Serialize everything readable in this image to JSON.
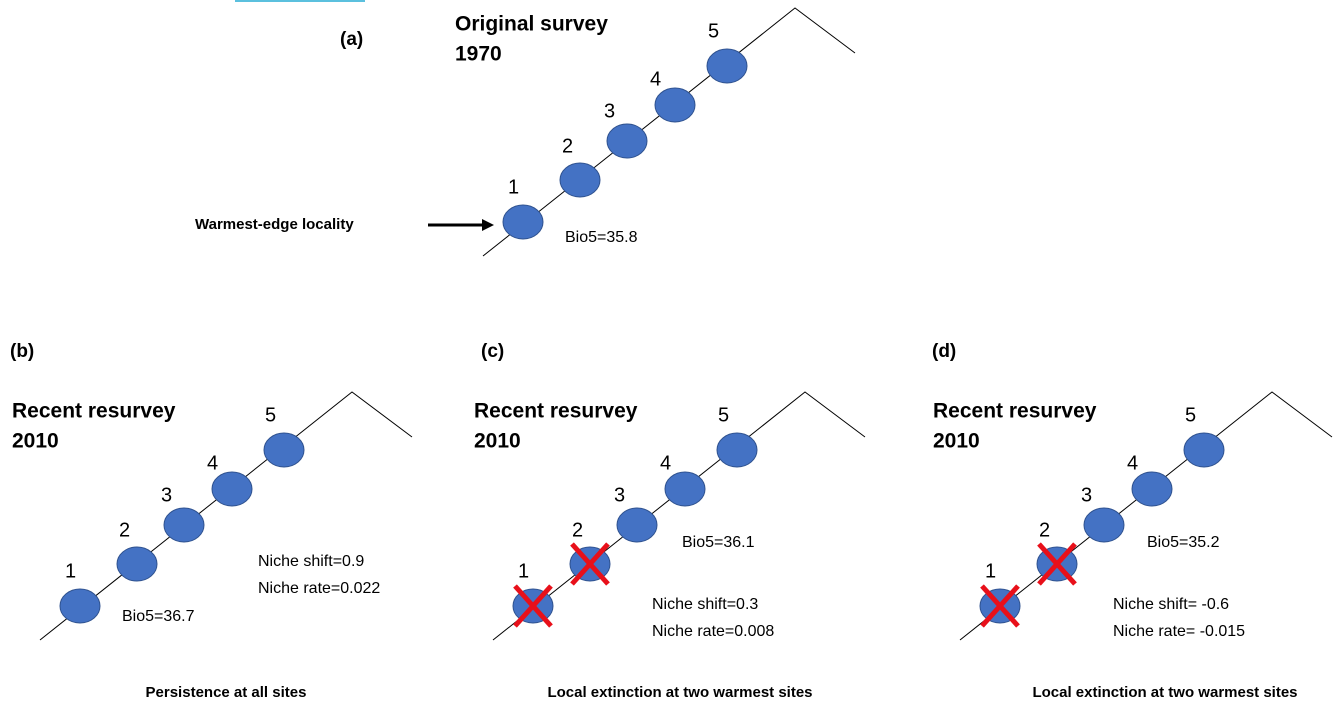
{
  "panels": [
    {
      "label": "(a)",
      "title": [
        "Original survey",
        "1970"
      ],
      "sites": [
        "1",
        "2",
        "3",
        "4",
        "5"
      ],
      "bio5": "Bio5=35.8",
      "annotation": "Warmest-edge locality"
    },
    {
      "label": "(b)",
      "title": [
        "Recent resurvey",
        "2010"
      ],
      "sites": [
        "1",
        "2",
        "3",
        "4",
        "5"
      ],
      "bio5": "Bio5=36.7",
      "niche": [
        "Niche shift=0.9",
        "Niche rate=0.022"
      ],
      "caption": "Persistence at all sites"
    },
    {
      "label": "(c)",
      "title": [
        "Recent resurvey",
        "2010"
      ],
      "sites": [
        "1",
        "2",
        "3",
        "4",
        "5"
      ],
      "bio5": "Bio5=36.1",
      "niche": [
        "Niche shift=0.3",
        "Niche rate=0.008"
      ],
      "caption": "Local extinction at two warmest sites"
    },
    {
      "label": "(d)",
      "title": [
        "Recent resurvey",
        "2010"
      ],
      "sites": [
        "1",
        "2",
        "3",
        "4",
        "5"
      ],
      "bio5": "Bio5=35.2",
      "niche": [
        "Niche shift= -0.6",
        "Niche rate= -0.015"
      ],
      "caption": "Local extinction at two warmest sites"
    }
  ]
}
